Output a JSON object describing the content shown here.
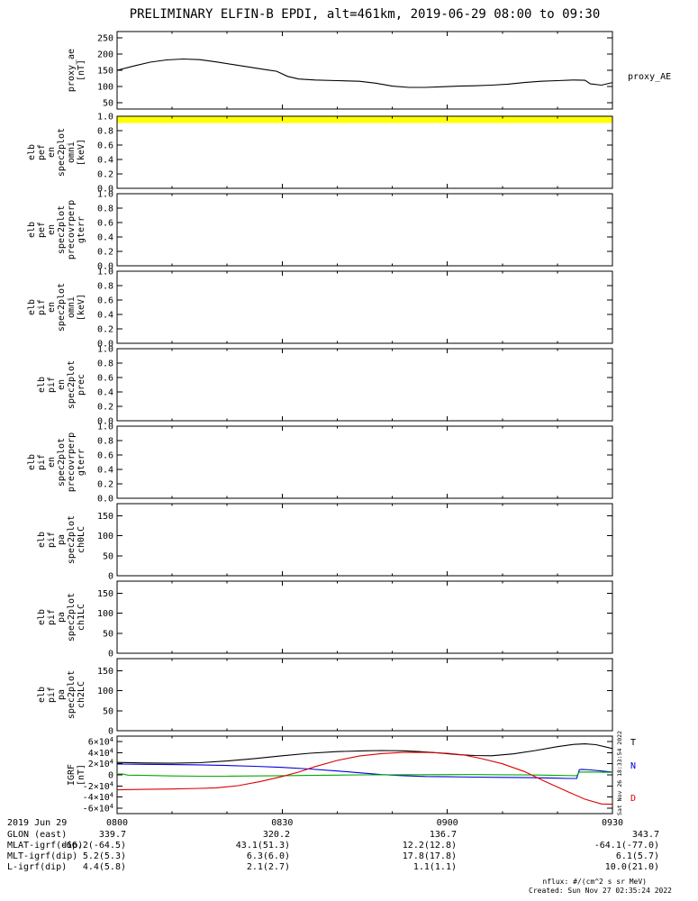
{
  "title": "PRELIMINARY ELFIN-B EPDI, alt=461km, 2019-06-29 08:00 to 09:30",
  "right_labels": {
    "proxy_ae": "proxy_AE"
  },
  "watermark": "Sat Nov 26 18:33:54 2022",
  "footer": {
    "nflux": "nflux: #/(cm^2 s sr MeV)",
    "created": "Created: Sun Nov 27 02:35:24 2022"
  },
  "xaxis": {
    "date_label": "2019 Jun 29",
    "ticks": [
      "0800",
      "0830",
      "0900",
      "0930"
    ]
  },
  "bottom_rows": [
    {
      "label": "GLON (east)",
      "values": [
        "339.7",
        "320.2",
        "136.7",
        "343.7"
      ]
    },
    {
      "label": "MLAT-igrf(dip)",
      "values": [
        "-66.2(-64.5)",
        "43.1(51.3)",
        "12.2(12.8)",
        "-64.1(-77.0)"
      ]
    },
    {
      "label": "MLT-igrf(dip)",
      "values": [
        "5.2(5.3)",
        "6.3(6.0)",
        "17.8(17.8)",
        "6.1(5.7)"
      ]
    },
    {
      "label": "L-igrf(dip)",
      "values": [
        "4.4(5.8)",
        "2.1(2.7)",
        "1.1(1.1)",
        "10.0(21.0)"
      ]
    }
  ],
  "panels": [
    {
      "name": "proxy-ae",
      "label_lines": [
        "proxy_ae",
        "[nT]"
      ],
      "ylim": [
        30,
        270
      ],
      "yticks": [
        {
          "l": "250",
          "v": 250
        },
        {
          "l": "200",
          "v": 200
        },
        {
          "l": "150",
          "v": 150
        },
        {
          "l": "100",
          "v": 100
        },
        {
          "l": "50",
          "v": 50
        }
      ]
    },
    {
      "name": "pef-en-omni",
      "label_lines": [
        "elb",
        "pef",
        "en",
        "spec2plot",
        "omni",
        "[keV]"
      ],
      "ylim": [
        0,
        1
      ],
      "band": {
        "color": "#ffff00"
      },
      "yticks": [
        {
          "l": "1.0",
          "v": 1
        },
        {
          "l": "0.8",
          "v": 0.8
        },
        {
          "l": "0.6",
          "v": 0.6
        },
        {
          "l": "0.4",
          "v": 0.4
        },
        {
          "l": "0.2",
          "v": 0.2
        },
        {
          "l": "0.0",
          "v": 0
        }
      ]
    },
    {
      "name": "pef-en-precovrperp-gterr",
      "label_lines": [
        "elb",
        "pef",
        "en",
        "spec2plot",
        "precovrperp",
        "gterr"
      ],
      "ylim": [
        0,
        1
      ],
      "yticks": [
        {
          "l": "1.0",
          "v": 1
        },
        {
          "l": "0.8",
          "v": 0.8
        },
        {
          "l": "0.6",
          "v": 0.6
        },
        {
          "l": "0.4",
          "v": 0.4
        },
        {
          "l": "0.2",
          "v": 0.2
        },
        {
          "l": "0.0",
          "v": 0
        }
      ]
    },
    {
      "name": "pif-en-omni",
      "label_lines": [
        "elb",
        "pif",
        "en",
        "spec2plot",
        "omni",
        "[keV]"
      ],
      "ylim": [
        0,
        1
      ],
      "yticks": [
        {
          "l": "1.0",
          "v": 1
        },
        {
          "l": "0.8",
          "v": 0.8
        },
        {
          "l": "0.6",
          "v": 0.6
        },
        {
          "l": "0.4",
          "v": 0.4
        },
        {
          "l": "0.2",
          "v": 0.2
        },
        {
          "l": "0.0",
          "v": 0
        }
      ]
    },
    {
      "name": "pif-en-prec",
      "label_lines": [
        "elb",
        "pif",
        "en",
        "spec2plot",
        "prec"
      ],
      "ylim": [
        0,
        1
      ],
      "yticks": [
        {
          "l": "1.0",
          "v": 1
        },
        {
          "l": "0.8",
          "v": 0.8
        },
        {
          "l": "0.6",
          "v": 0.6
        },
        {
          "l": "0.4",
          "v": 0.4
        },
        {
          "l": "0.2",
          "v": 0.2
        },
        {
          "l": "0.0",
          "v": 0
        }
      ]
    },
    {
      "name": "pif-en-precovrperp-gterr",
      "label_lines": [
        "elb",
        "pif",
        "en",
        "spec2plot",
        "precovrperp",
        "gterr"
      ],
      "ylim": [
        0,
        1
      ],
      "yticks": [
        {
          "l": "1.0",
          "v": 1
        },
        {
          "l": "0.8",
          "v": 0.8
        },
        {
          "l": "0.6",
          "v": 0.6
        },
        {
          "l": "0.4",
          "v": 0.4
        },
        {
          "l": "0.2",
          "v": 0.2
        },
        {
          "l": "0.0",
          "v": 0
        }
      ]
    },
    {
      "name": "pif-pa-ch0lc",
      "label_lines": [
        "elb",
        "pif",
        "pa",
        "spec2plot",
        "ch0LC"
      ],
      "ylim": [
        0,
        180
      ],
      "yticks": [
        {
          "l": "150",
          "v": 150
        },
        {
          "l": "100",
          "v": 100
        },
        {
          "l": "50",
          "v": 50
        },
        {
          "l": "0",
          "v": 0
        }
      ]
    },
    {
      "name": "pif-pa-ch1lc",
      "label_lines": [
        "elb",
        "pif",
        "pa",
        "spec2plot",
        "ch1LC"
      ],
      "ylim": [
        0,
        180
      ],
      "yticks": [
        {
          "l": "150",
          "v": 150
        },
        {
          "l": "100",
          "v": 100
        },
        {
          "l": "50",
          "v": 50
        },
        {
          "l": "0",
          "v": 0
        }
      ]
    },
    {
      "name": "pif-pa-ch2lc",
      "label_lines": [
        "elb",
        "pif",
        "pa",
        "spec2plot",
        "ch2LC"
      ],
      "ylim": [
        0,
        180
      ],
      "yticks": [
        {
          "l": "150",
          "v": 150
        },
        {
          "l": "100",
          "v": 100
        },
        {
          "l": "50",
          "v": 50
        },
        {
          "l": "0",
          "v": 0
        }
      ]
    },
    {
      "name": "igrf",
      "label_lines": [
        "IGRF",
        "[nT]"
      ],
      "ylim": [
        -70000,
        70000
      ],
      "yticks": [
        {
          "l": "6×10^4",
          "v": 60000
        },
        {
          "l": "4×10^4",
          "v": 40000
        },
        {
          "l": "2×10^4",
          "v": 20000
        },
        {
          "l": "0",
          "v": 0
        },
        {
          "l": "-2×10^4",
          "v": -20000
        },
        {
          "l": "-4×10^4",
          "v": -40000
        },
        {
          "l": "-6×10^4",
          "v": -60000
        }
      ]
    }
  ],
  "chart_data": [
    {
      "type": "line",
      "title": "proxy_AE",
      "panel": "proxy-ae",
      "ylabel": "proxy_ae [nT]",
      "ylim": [
        30,
        270
      ],
      "x_unit": "minutes after 08:00",
      "x_ticks": [
        "0800",
        "0830",
        "0900",
        "0930"
      ],
      "color": "#000000",
      "x": [
        0,
        3,
        6,
        9,
        12,
        15,
        18,
        21,
        24,
        27,
        29,
        31,
        33,
        36,
        40,
        44,
        47,
        50,
        53,
        56,
        59,
        62,
        65,
        68,
        71,
        74,
        77,
        80,
        83,
        85,
        86,
        88,
        90
      ],
      "values": [
        150,
        163,
        175,
        182,
        185,
        183,
        176,
        168,
        160,
        152,
        147,
        131,
        123,
        120,
        118,
        116,
        110,
        101,
        97,
        97,
        99,
        101,
        102,
        104,
        107,
        112,
        116,
        118,
        120,
        119,
        108,
        104,
        112
      ]
    },
    {
      "type": "line",
      "title": "IGRF",
      "panel": "igrf",
      "ylabel": "IGRF [nT]",
      "ylim": [
        -70000,
        70000
      ],
      "x_unit": "minutes after 08:00",
      "x_ticks": [
        "0800",
        "0830",
        "0900",
        "0930"
      ],
      "legend_position": "right",
      "series": [
        {
          "name": "T",
          "color": "#000000",
          "x": [
            0,
            5,
            10,
            15,
            20,
            25,
            30,
            35,
            40,
            45,
            48,
            52,
            55,
            58,
            62,
            65,
            68,
            72,
            76,
            80,
            83,
            85,
            87,
            90
          ],
          "values": [
            22500,
            21500,
            21000,
            22000,
            25000,
            29500,
            34500,
            39000,
            42000,
            43500,
            44000,
            43500,
            42000,
            40000,
            36500,
            35000,
            34500,
            38000,
            44000,
            51000,
            55000,
            56000,
            54500,
            47500
          ]
        },
        {
          "name": "N",
          "color": "#0000dd",
          "x": [
            0,
            5,
            10,
            15,
            20,
            25,
            30,
            35,
            40,
            45,
            48,
            52,
            56,
            60,
            65,
            70,
            75,
            78,
            80,
            82,
            83.5,
            84,
            84.5,
            86,
            88,
            90
          ],
          "values": [
            19500,
            19000,
            18500,
            18000,
            17000,
            15500,
            13500,
            10500,
            7000,
            3000,
            500,
            -1500,
            -3000,
            -3500,
            -4000,
            -4500,
            -5000,
            -5500,
            -6000,
            -6500,
            -6500,
            9500,
            10000,
            9000,
            7000,
            5000
          ]
        },
        {
          "name": "",
          "color": "#00aa00",
          "x": [
            0,
            1,
            2,
            5,
            10,
            15,
            20,
            25,
            30,
            35,
            40,
            45,
            50,
            55,
            60,
            65,
            70,
            75,
            80,
            83,
            83.5,
            84,
            86,
            88,
            90
          ],
          "values": [
            1500,
            1500,
            -500,
            -1000,
            -2000,
            -2500,
            -2500,
            -2000,
            -1500,
            -1000,
            -500,
            0,
            200,
            400,
            500,
            500,
            200,
            -200,
            -1000,
            -1500,
            -1500,
            5000,
            5200,
            4800,
            4500
          ]
        },
        {
          "name": "D",
          "color": "#dd0000",
          "x": [
            0,
            5,
            10,
            15,
            18,
            22,
            26,
            30,
            33,
            36,
            40,
            44,
            48,
            52,
            56,
            60,
            63,
            66,
            70,
            74,
            78,
            82,
            85,
            88,
            90
          ],
          "values": [
            -27000,
            -26200,
            -25500,
            -24500,
            -23500,
            -19500,
            -12000,
            -3000,
            5000,
            15000,
            26000,
            34000,
            38500,
            40500,
            40500,
            39000,
            36000,
            30000,
            20000,
            6000,
            -13000,
            -31000,
            -44000,
            -52500,
            -53000
          ]
        }
      ]
    }
  ]
}
